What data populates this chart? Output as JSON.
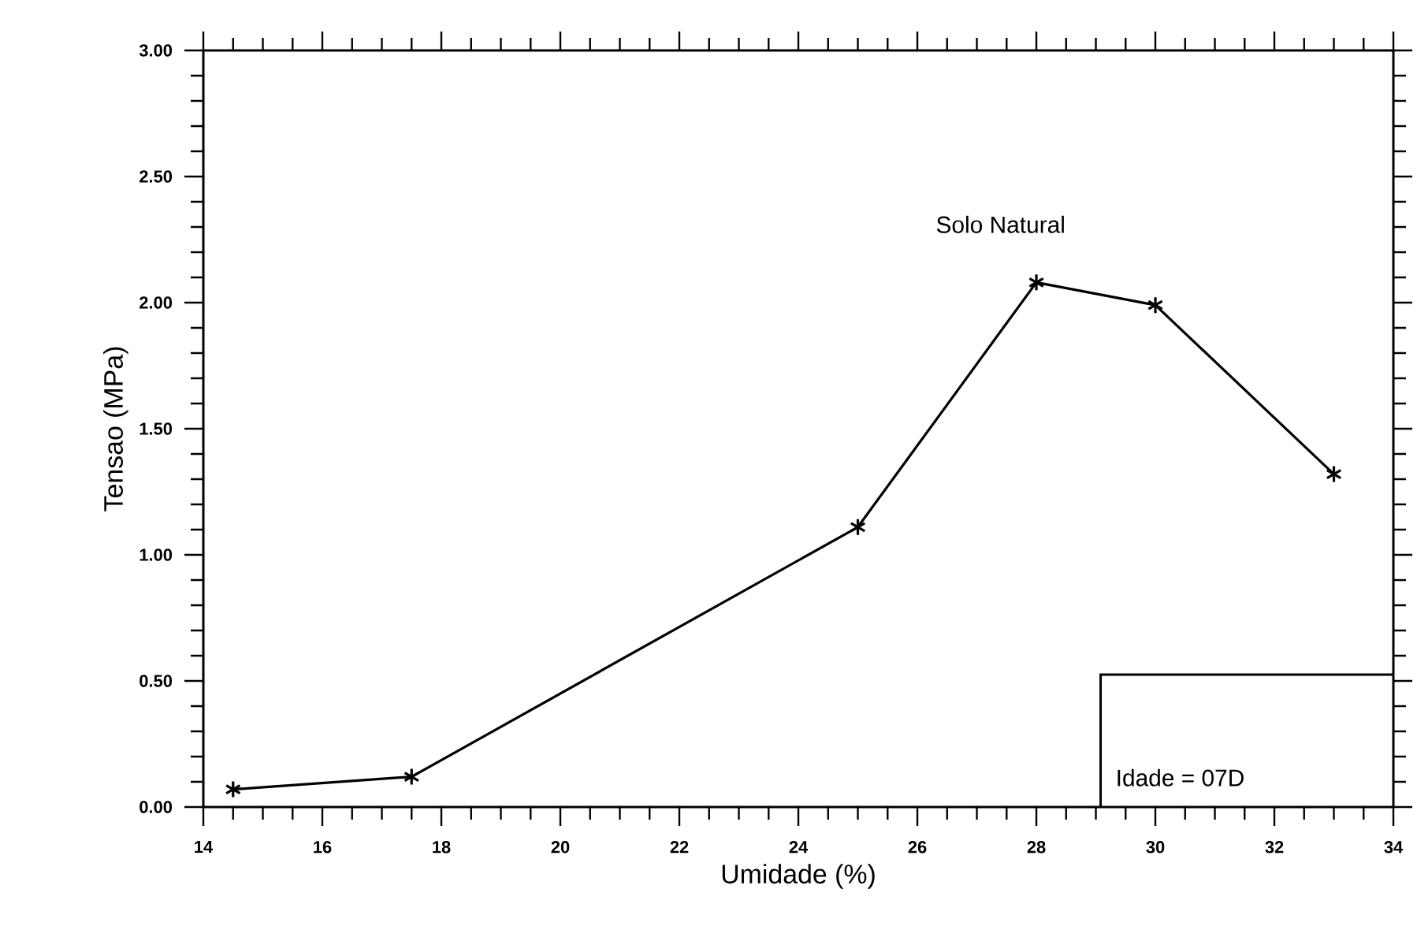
{
  "chart_data": {
    "type": "line",
    "xlabel": "Umidade (%)",
    "ylabel": "Tensao (MPa)",
    "x": [
      14.5,
      17.5,
      25,
      28,
      30,
      33
    ],
    "values": [
      0.07,
      0.12,
      1.11,
      2.08,
      1.99,
      1.32
    ],
    "color": "#000000",
    "marker": "cross",
    "line_style": "solid",
    "xlim": [
      14,
      34
    ],
    "ylim": [
      0,
      3
    ],
    "xticks": [
      14,
      16,
      18,
      20,
      22,
      24,
      26,
      28,
      30,
      32,
      34
    ],
    "yticks": [
      {
        "value": 0,
        "label": "0.00"
      },
      {
        "value": 0.5,
        "label": "0.50"
      },
      {
        "value": 1,
        "label": "1.00"
      },
      {
        "value": 1.5,
        "label": "1.50"
      },
      {
        "value": 2,
        "label": "2.00"
      },
      {
        "value": 2.5,
        "label": "2.50"
      },
      {
        "value": 3,
        "label": "3.00"
      }
    ],
    "annotations": [
      "Solo Natural",
      "Idade = 07D"
    ]
  }
}
